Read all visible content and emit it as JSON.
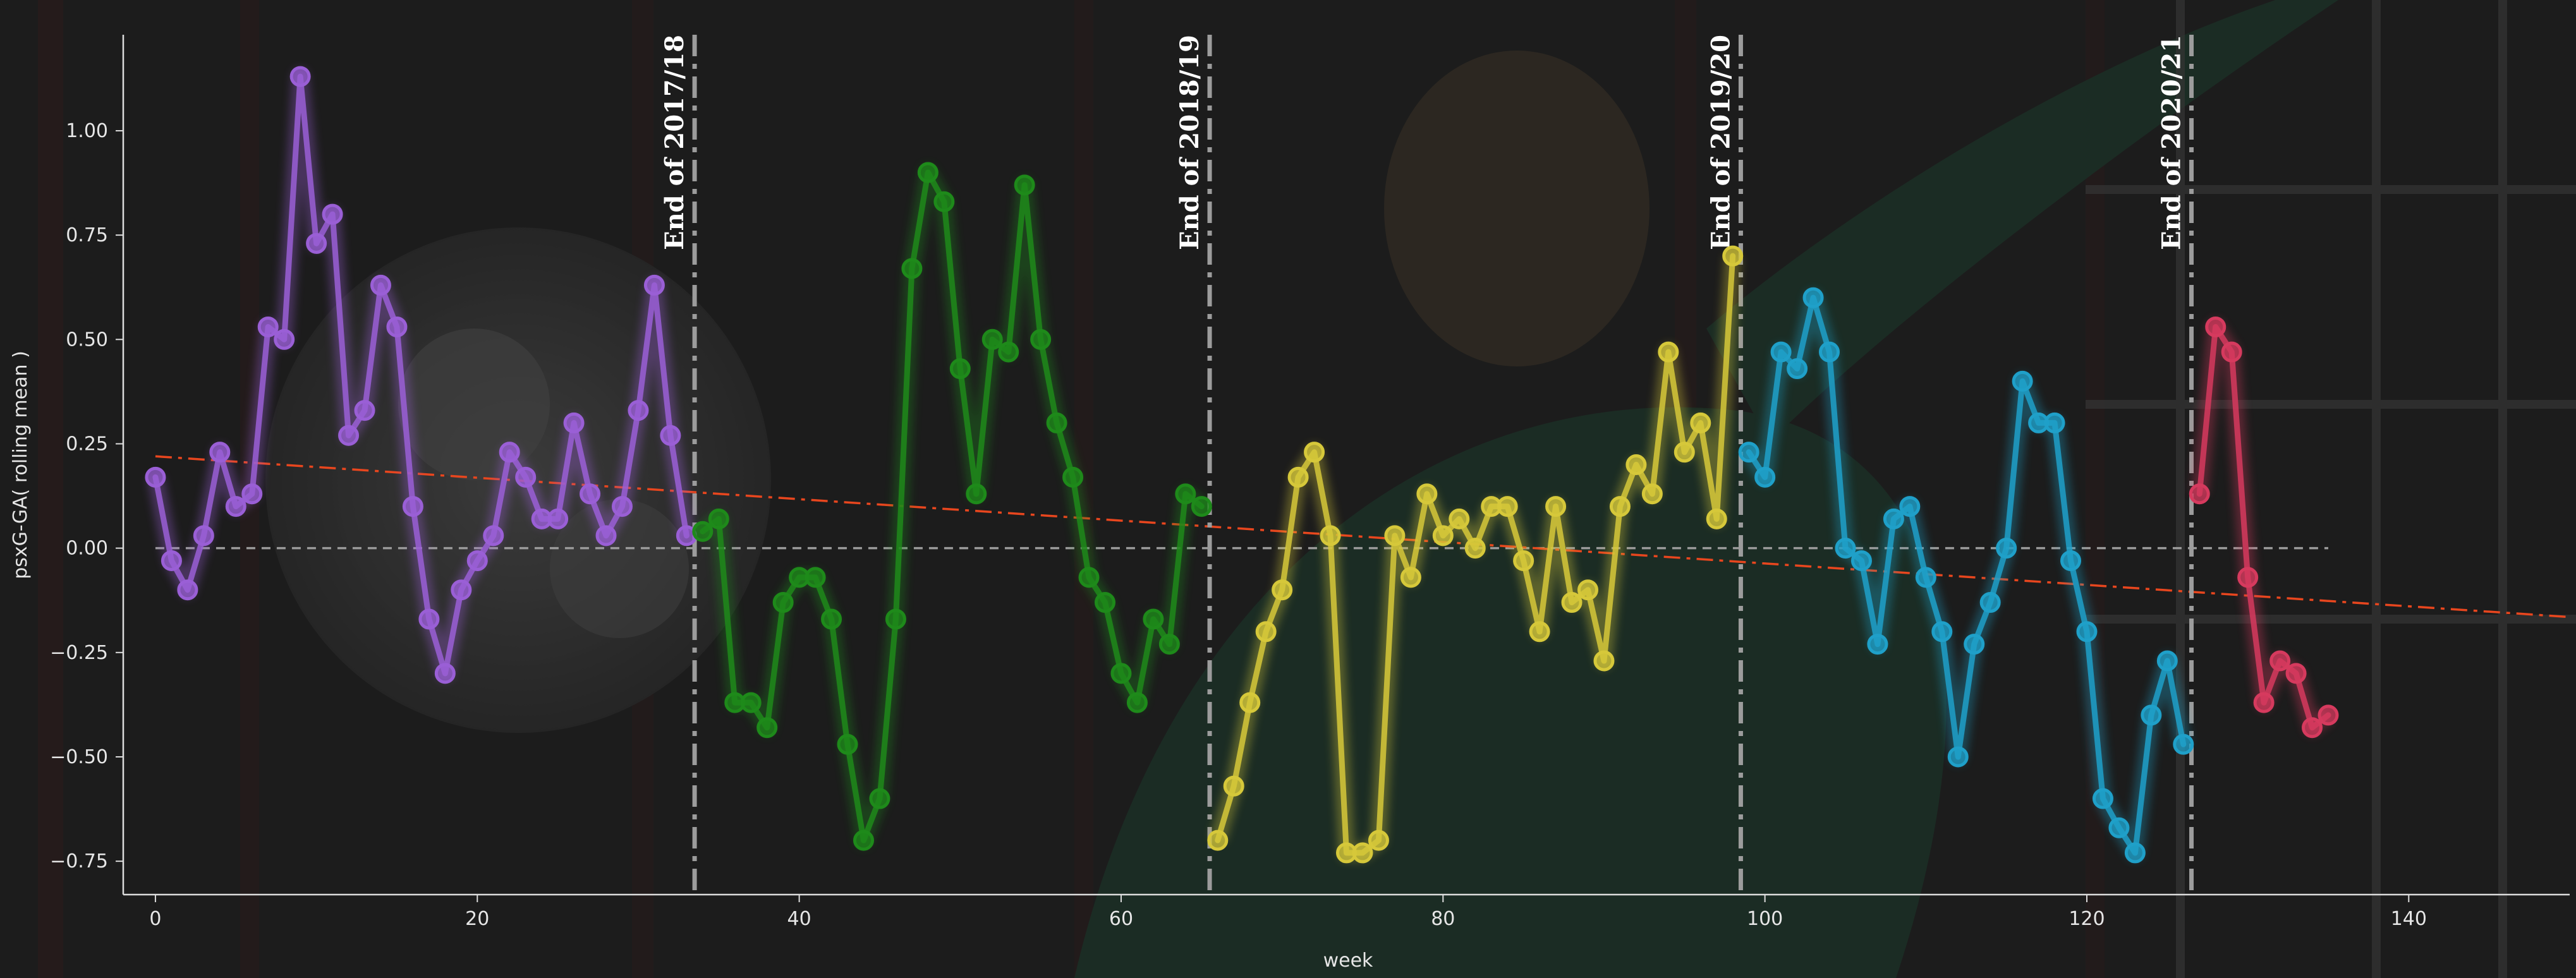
{
  "chart_data": {
    "type": "line",
    "title": "",
    "xlabel": "week",
    "ylabel": "psxG-GA( rolling mean )",
    "xlim": [
      -2,
      150
    ],
    "ylim": [
      -0.83,
      1.23
    ],
    "x_ticks": [
      0,
      20,
      40,
      60,
      80,
      100,
      120,
      140
    ],
    "y_ticks": [
      -0.75,
      -0.5,
      -0.25,
      0.0,
      0.25,
      0.5,
      0.75,
      1.0
    ],
    "x_tick_labels": [
      "0",
      "20",
      "40",
      "60",
      "80",
      "100",
      "120",
      "140"
    ],
    "y_tick_labels": [
      "−0.75",
      "−0.50",
      "−0.25",
      "0.00",
      "0.25",
      "0.50",
      "0.75",
      "1.00"
    ],
    "grid": false,
    "legend": "none",
    "reference_line": {
      "y": 0,
      "x_range": [
        0,
        135
      ],
      "style": "dashed",
      "color": "#9a9a9a"
    },
    "trend_line": {
      "x_range": [
        0,
        150
      ],
      "y_start": 0.22,
      "y_end": -0.165,
      "style": "dashdot",
      "color": "#e8461e"
    },
    "season_ends": [
      {
        "x": 33.5,
        "label": "End of 2017/18"
      },
      {
        "x": 65.5,
        "label": "End of 2018/19"
      },
      {
        "x": 98.5,
        "label": "End of 2019/20"
      },
      {
        "x": 126.5,
        "label": "End of 2020/21"
      }
    ],
    "series": [
      {
        "color": "#9a5fd6",
        "x_start": 0,
        "values": [
          0.17,
          -0.03,
          -0.1,
          0.03,
          0.23,
          0.1,
          0.13,
          0.53,
          0.5,
          1.13,
          0.73,
          0.8,
          0.27,
          0.33,
          0.63,
          0.53,
          0.1,
          -0.17,
          -0.3,
          -0.1,
          -0.03,
          0.03,
          0.23,
          0.17,
          0.07,
          0.07,
          0.3,
          0.13,
          0.03,
          0.1,
          0.33,
          0.63,
          0.27,
          0.03
        ]
      },
      {
        "color": "#1e8a1a",
        "x_start": 34,
        "values": [
          0.04,
          0.07,
          -0.37,
          -0.37,
          -0.43,
          -0.13,
          -0.07,
          -0.07,
          -0.17,
          -0.47,
          -0.7,
          -0.6,
          -0.17,
          0.67,
          0.9,
          0.83,
          0.43,
          0.13,
          0.5,
          0.47,
          0.87,
          0.5,
          0.3,
          0.17,
          -0.07,
          -0.13,
          -0.3,
          -0.37,
          -0.17,
          -0.23,
          0.13,
          0.1
        ]
      },
      {
        "color": "#d6c83a",
        "x_start": 66,
        "values": [
          -0.7,
          -0.57,
          -0.37,
          -0.2,
          -0.1,
          0.17,
          0.23,
          0.03,
          -0.73,
          -0.73,
          -0.7,
          0.03,
          -0.07,
          0.13,
          0.03,
          0.07,
          0.0,
          0.1,
          0.1,
          -0.03,
          -0.2,
          0.1,
          -0.13,
          -0.1,
          -0.27,
          0.1,
          0.2,
          0.13,
          0.47,
          0.23,
          0.3,
          0.07,
          0.7
        ]
      },
      {
        "color": "#1fa0c9",
        "x_start": 99,
        "values": [
          0.23,
          0.17,
          0.47,
          0.43,
          0.6,
          0.47,
          0.0,
          -0.03,
          -0.23,
          0.07,
          0.1,
          -0.07,
          -0.2,
          -0.5,
          -0.23,
          -0.13,
          0.0,
          0.4,
          0.3,
          0.3,
          -0.03,
          -0.2,
          -0.6,
          -0.67,
          -0.73,
          -0.4,
          -0.27,
          -0.47
        ]
      },
      {
        "color": "#d63a5e",
        "x_start": 127,
        "values": [
          0.13,
          0.53,
          0.47,
          -0.07,
          -0.37,
          -0.27,
          -0.3,
          -0.43,
          -0.4
        ]
      }
    ]
  }
}
